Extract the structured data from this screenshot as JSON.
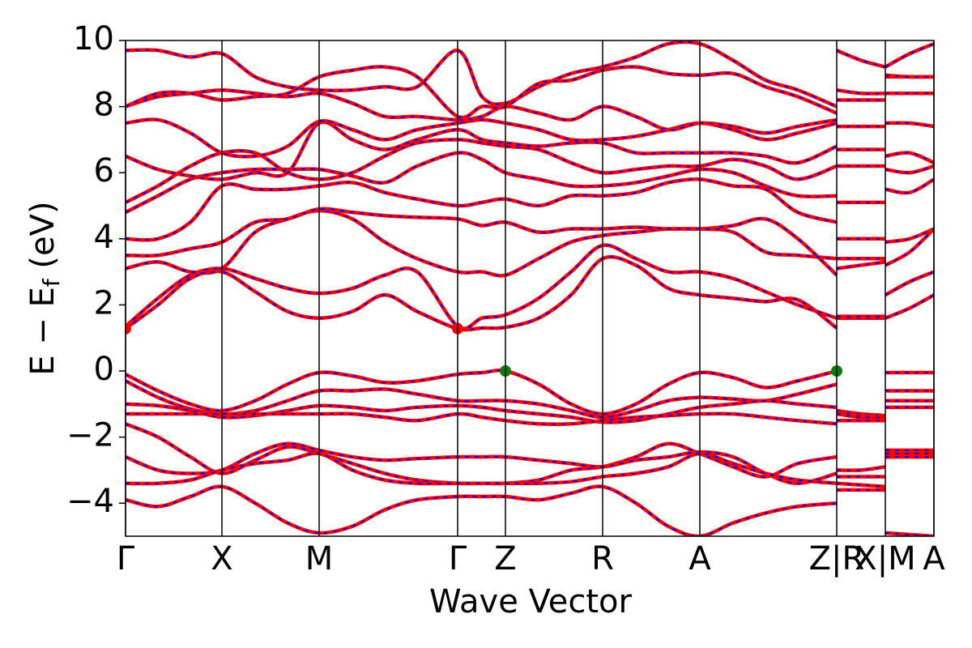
{
  "chart_data": {
    "type": "band-structure",
    "xlabel": "Wave Vector",
    "ylabel": "E − E",
    "ylabel_sub": "f",
    "ylabel_tail": " (eV)",
    "xlim": [
      0,
      9.98
    ],
    "ylim": [
      -5,
      10
    ],
    "xticks": [
      {
        "value": 0,
        "label": "Γ"
      },
      {
        "value": 1.19,
        "label": "X"
      },
      {
        "value": 2.39,
        "label": "M"
      },
      {
        "value": 4.1,
        "label": "Γ"
      },
      {
        "value": 4.69,
        "label": "Z"
      },
      {
        "value": 5.89,
        "label": "R"
      },
      {
        "value": 7.09,
        "label": "A"
      },
      {
        "value": 8.78,
        "label": "Z|R"
      },
      {
        "value": 9.38,
        "label": "X|M"
      },
      {
        "value": 9.98,
        "label": "A"
      }
    ],
    "yticks": [
      {
        "value": -4,
        "label": "−4"
      },
      {
        "value": -2,
        "label": "−2"
      },
      0,
      2,
      4,
      6,
      8,
      10
    ],
    "line_color": "red",
    "dash_color": "blue",
    "x": [
      0,
      0.4,
      0.8,
      1.19,
      1.6,
      2.0,
      2.39,
      2.8,
      3.2,
      3.6,
      4.1,
      4.4,
      4.69,
      5.1,
      5.5,
      5.89,
      6.3,
      6.7,
      7.09,
      7.5,
      7.9,
      8.3,
      8.78,
      8.78,
      8.78,
      9.08,
      9.38,
      9.38,
      9.38,
      9.68,
      9.98
    ],
    "bands": [
      [
        -0.1,
        -0.6,
        -1.0,
        -1.2,
        -0.9,
        -0.4,
        -0.05,
        -0.15,
        -0.35,
        -0.3,
        -0.1,
        -0.05,
        0,
        -0.4,
        -1.0,
        -1.3,
        -1.0,
        -0.4,
        -0.05,
        -0.2,
        -0.5,
        -0.3,
        0,
        null,
        -1.2,
        -1.3,
        -1.35,
        null,
        -0.05,
        -0.05,
        -0.05
      ],
      [
        -0.3,
        -0.8,
        -1.15,
        -1.3,
        -1.2,
        -0.9,
        -0.6,
        -0.6,
        -0.55,
        -0.7,
        -0.9,
        -0.9,
        -0.9,
        -1.0,
        -1.2,
        -1.4,
        -1.2,
        -0.9,
        -0.8,
        -0.85,
        -0.9,
        -0.7,
        -0.4,
        null,
        -1.25,
        -1.35,
        -1.4,
        null,
        -0.6,
        -0.6,
        -0.6
      ],
      [
        -1.0,
        -1.05,
        -1.2,
        -1.4,
        -1.35,
        -1.2,
        -1.05,
        -1.1,
        -1.2,
        -1.1,
        -1.05,
        -1.1,
        -1.2,
        -1.3,
        -1.4,
        -1.55,
        -1.5,
        -1.3,
        -1.1,
        -1.0,
        -0.9,
        -1.0,
        -1.1,
        null,
        -1.3,
        -1.4,
        -1.4,
        null,
        -0.9,
        -0.9,
        -0.9
      ],
      [
        -1.3,
        -1.3,
        -1.3,
        -1.3,
        -1.3,
        -1.3,
        -1.3,
        -1.3,
        -1.4,
        -1.5,
        -1.3,
        -1.4,
        -1.5,
        -1.6,
        -1.6,
        -1.5,
        -1.4,
        -1.35,
        -1.3,
        -1.3,
        -1.4,
        -1.5,
        -1.6,
        null,
        -1.5,
        -1.5,
        -1.5,
        null,
        -1.1,
        -1.1,
        -1.1
      ],
      [
        -1.6,
        -2.0,
        -2.6,
        -3.1,
        -2.7,
        -2.3,
        -2.5,
        -2.8,
        -3.1,
        -3.3,
        -3.4,
        -3.4,
        -3.4,
        -3.3,
        -3.0,
        -2.9,
        -2.6,
        -2.2,
        -2.5,
        -2.9,
        -3.2,
        -2.8,
        -2.6,
        null,
        -3.0,
        -3.0,
        -2.9,
        null,
        -2.4,
        -2.4,
        -2.4
      ],
      [
        -2.6,
        -3.0,
        -3.1,
        -3.0,
        -2.5,
        -2.2,
        -2.4,
        -2.6,
        -2.7,
        -2.65,
        -2.6,
        -2.6,
        -2.6,
        -2.7,
        -2.8,
        -2.9,
        -2.7,
        -2.6,
        -2.45,
        -2.6,
        -3.1,
        -3.4,
        -3.1,
        null,
        -3.2,
        -3.2,
        -3.2,
        null,
        -2.6,
        -2.6,
        -2.6
      ],
      [
        -3.4,
        -3.4,
        -3.3,
        -3.0,
        -2.8,
        -2.7,
        -2.5,
        -3.0,
        -3.3,
        -3.4,
        -3.4,
        -3.4,
        -3.4,
        -3.4,
        -3.35,
        -3.2,
        -3.1,
        -2.9,
        -2.5,
        -2.8,
        -3.1,
        -3.3,
        -3.4,
        null,
        -3.4,
        -3.45,
        -3.5,
        null,
        -2.5,
        -2.5,
        -2.5
      ],
      [
        -3.9,
        -4.1,
        -3.8,
        -3.5,
        -4.0,
        -4.6,
        -4.9,
        -4.7,
        -4.2,
        -3.9,
        -3.8,
        -3.8,
        -3.8,
        -3.9,
        -3.7,
        -3.5,
        -4.0,
        -4.7,
        -5.0,
        -4.6,
        -4.3,
        -4.1,
        -4.0,
        null,
        -3.6,
        -3.6,
        -3.6,
        null,
        -4.9,
        -4.95,
        -5.0
      ],
      [
        1.28,
        2.0,
        2.8,
        3.0,
        2.4,
        1.8,
        1.6,
        1.8,
        2.3,
        1.8,
        1.28,
        1.3,
        1.32,
        1.6,
        2.3,
        3.4,
        3.2,
        2.5,
        2.3,
        2.2,
        2.1,
        2.15,
        1.3,
        null,
        1.6,
        1.6,
        1.6,
        null,
        1.6,
        1.9,
        2.3
      ],
      [
        1.35,
        2.2,
        2.9,
        3.1,
        2.8,
        2.5,
        2.35,
        2.5,
        2.9,
        3.0,
        1.35,
        1.6,
        1.7,
        2.2,
        3.0,
        3.8,
        3.4,
        3.0,
        3.0,
        2.8,
        2.4,
        2.0,
        1.6,
        null,
        1.65,
        1.65,
        1.65,
        null,
        2.3,
        2.7,
        3.0
      ],
      [
        3.1,
        3.3,
        3.0,
        3.1,
        4.2,
        4.6,
        4.85,
        4.6,
        3.9,
        3.4,
        3.0,
        3.0,
        2.9,
        3.4,
        3.9,
        4.1,
        4.2,
        4.3,
        4.3,
        4.4,
        4.6,
        4.0,
        2.9,
        null,
        3.1,
        3.2,
        3.3,
        null,
        3.2,
        3.6,
        4.3
      ],
      [
        3.5,
        3.5,
        3.7,
        3.9,
        4.5,
        4.6,
        4.9,
        4.8,
        4.7,
        4.65,
        4.6,
        4.4,
        4.5,
        4.2,
        4.3,
        4.3,
        4.35,
        4.3,
        4.3,
        4.2,
        3.6,
        3.5,
        3.4,
        null,
        3.4,
        3.4,
        3.4,
        null,
        3.9,
        4.0,
        4.3
      ],
      [
        4.0,
        4.0,
        4.5,
        5.6,
        5.5,
        5.5,
        5.6,
        5.7,
        5.4,
        5.2,
        5.0,
        5.1,
        5.2,
        5.0,
        5.3,
        5.3,
        5.4,
        5.7,
        5.8,
        5.6,
        5.5,
        4.8,
        4.5,
        null,
        4.0,
        4.0,
        4.0,
        null,
        5.5,
        5.4,
        5.8
      ],
      [
        4.8,
        5.3,
        5.8,
        6.0,
        6.1,
        6.1,
        6.1,
        5.9,
        5.7,
        6.2,
        6.6,
        6.4,
        6.0,
        5.8,
        5.6,
        5.6,
        5.7,
        5.9,
        6.1,
        6.0,
        5.6,
        5.3,
        5.3,
        null,
        5.1,
        5.1,
        5.1,
        null,
        6.1,
        6.0,
        6.2
      ],
      [
        5.1,
        5.6,
        6.2,
        6.6,
        6.6,
        6.0,
        5.8,
        6.0,
        6.5,
        6.9,
        7.0,
        6.9,
        6.8,
        6.7,
        6.3,
        6.0,
        6.1,
        6.2,
        6.2,
        6.4,
        6.2,
        5.8,
        6.2,
        null,
        6.2,
        6.2,
        6.2,
        null,
        6.5,
        6.6,
        6.3
      ],
      [
        6.5,
        6.1,
        5.9,
        5.8,
        6.0,
        6.0,
        7.5,
        7.0,
        6.7,
        7.0,
        7.3,
        7.0,
        6.9,
        6.8,
        6.9,
        6.9,
        6.6,
        6.6,
        6.6,
        6.6,
        6.5,
        6.3,
        6.8,
        null,
        6.7,
        6.7,
        6.7,
        null,
        7.5,
        7.5,
        7.4
      ],
      [
        7.5,
        7.6,
        7.2,
        6.6,
        6.5,
        6.8,
        7.55,
        7.3,
        7.0,
        7.3,
        7.5,
        7.6,
        7.5,
        7.3,
        7.0,
        7.0,
        7.1,
        7.3,
        7.5,
        7.3,
        7.0,
        7.2,
        7.5,
        null,
        7.4,
        7.4,
        7.4,
        null,
        8.9,
        8.9,
        8.9
      ],
      [
        8.0,
        8.3,
        8.4,
        8.5,
        8.4,
        8.3,
        8.4,
        8.1,
        7.7,
        7.7,
        7.6,
        7.7,
        8.0,
        7.8,
        7.6,
        8.0,
        7.7,
        7.3,
        7.5,
        7.4,
        7.2,
        7.4,
        7.6,
        null,
        8.2,
        8.2,
        8.2,
        null,
        9.2,
        9.6,
        9.9
      ],
      [
        9.7,
        9.7,
        9.5,
        9.6,
        8.9,
        8.6,
        8.5,
        8.5,
        8.6,
        8.6,
        9.7,
        8.3,
        8.1,
        8.6,
        9.0,
        9.2,
        9.5,
        9.9,
        9.9,
        9.4,
        8.8,
        8.5,
        8.0,
        null,
        8.5,
        8.4,
        8.4,
        null,
        8.95,
        8.9,
        8.9
      ],
      [
        8.0,
        8.4,
        8.4,
        8.2,
        8.3,
        8.4,
        8.9,
        9.1,
        9.2,
        8.9,
        7.7,
        8.0,
        8.0,
        8.7,
        8.8,
        9.1,
        9.2,
        9.0,
        8.95,
        9.0,
        8.6,
        8.3,
        7.8,
        null,
        9.7,
        9.4,
        9.2,
        null,
        8.4,
        8.4,
        8.4
      ]
    ],
    "markers": [
      {
        "x": 0,
        "y": 1.28,
        "color": "red"
      },
      {
        "x": 4.1,
        "y": 1.28,
        "color": "red"
      },
      {
        "x": 4.69,
        "y": 0,
        "color": "green"
      },
      {
        "x": 8.78,
        "y": 0,
        "color": "green"
      }
    ]
  }
}
